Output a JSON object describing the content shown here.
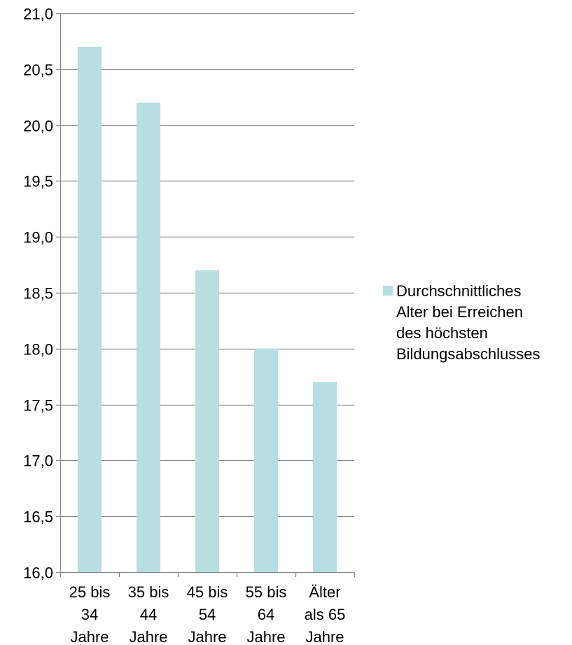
{
  "chart_data": {
    "type": "bar",
    "categories": [
      "25 bis 34 Jahre",
      "35 bis 44 Jahre",
      "45 bis 54 Jahre",
      "55 bis 64 Jahre",
      "Älter als 65 Jahre"
    ],
    "category_lines": [
      [
        "25 bis",
        "34",
        "Jahre"
      ],
      [
        "35 bis",
        "44",
        "Jahre"
      ],
      [
        "45 bis",
        "54",
        "Jahre"
      ],
      [
        "55 bis",
        "64",
        "Jahre"
      ],
      [
        "Älter",
        "als 65",
        "Jahre"
      ]
    ],
    "series": [
      {
        "name": "Durchschnittliches Alter bei Erreichen des höchsten Bildungsabschlusses",
        "values": [
          20.7,
          20.2,
          18.7,
          18.0,
          17.7
        ],
        "color": "#B7DEE0"
      }
    ],
    "ylim": [
      16.0,
      21.0
    ],
    "yticks": [
      "16,0",
      "16,5",
      "17,0",
      "17,5",
      "18,0",
      "18,5",
      "19,0",
      "19,5",
      "20,0",
      "20,5",
      "21,0"
    ],
    "ytick_values": [
      16.0,
      16.5,
      17.0,
      17.5,
      18.0,
      18.5,
      19.0,
      19.5,
      20.0,
      20.5,
      21.0
    ],
    "legend": {
      "position": "right",
      "lines": [
        "Durchschnittliches",
        "Alter bei Erreichen",
        "des höchsten",
        "Bildungsabschlusses"
      ]
    },
    "grid": true,
    "gridline_color": "#868686",
    "axis_color": "#868686",
    "title": "",
    "xlabel": "",
    "ylabel": ""
  }
}
